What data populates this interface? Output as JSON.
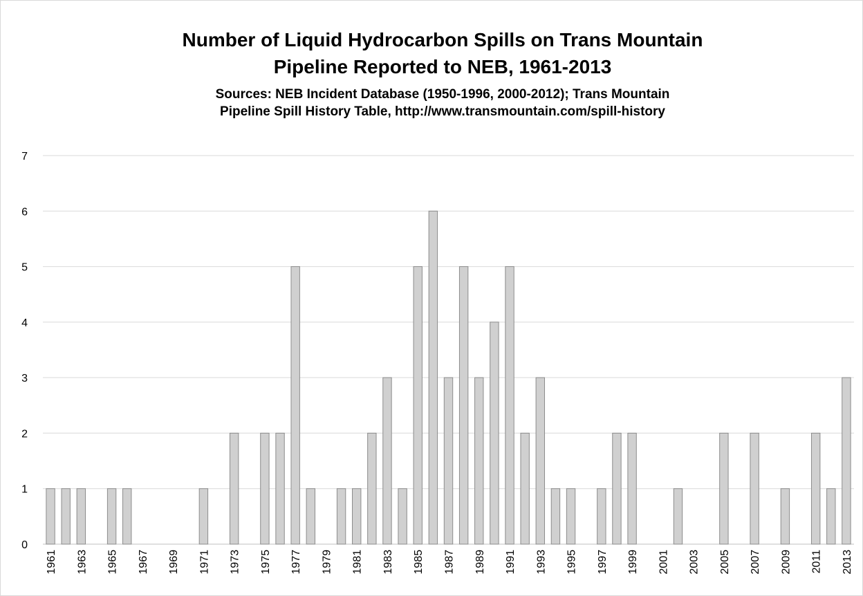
{
  "chart_data": {
    "type": "bar",
    "title": [
      "Number of Liquid Hydrocarbon Spills on Trans Mountain",
      "Pipeline Reported to NEB, 1961-2013"
    ],
    "subtitle": [
      "Sources: NEB Incident Database (1950-1996, 2000-2012); Trans Mountain",
      "Pipeline Spill History Table, http://www.transmountain.com/spill-history"
    ],
    "categories": [
      "1961",
      null,
      "1963",
      null,
      "1965",
      null,
      "1967",
      null,
      "1969",
      null,
      "1971",
      null,
      "1973",
      null,
      "1975",
      null,
      "1977",
      null,
      "1979",
      null,
      "1981",
      null,
      "1983",
      null,
      "1985",
      null,
      "1987",
      null,
      "1989",
      null,
      "1991",
      null,
      "1993",
      null,
      "1995",
      null,
      "1997",
      null,
      "1999",
      null,
      "2001",
      null,
      "2003",
      null,
      "2005",
      null,
      "2007",
      null,
      "2009",
      null,
      "2011",
      null,
      "2013"
    ],
    "values": [
      1,
      1,
      1,
      0,
      1,
      1,
      0,
      0,
      0,
      0,
      1,
      0,
      2,
      0,
      2,
      2,
      5,
      1,
      0,
      1,
      1,
      2,
      3,
      1,
      5,
      6,
      3,
      5,
      3,
      4,
      5,
      2,
      3,
      1,
      1,
      0,
      1,
      2,
      2,
      0,
      0,
      1,
      0,
      0,
      2,
      0,
      2,
      0,
      1,
      0,
      2,
      1,
      3
    ],
    "color": "#d0d0d0",
    "ylim": [
      0,
      7
    ],
    "yticks": [
      0,
      1,
      2,
      3,
      4,
      5,
      6,
      7
    ],
    "grid": true
  }
}
